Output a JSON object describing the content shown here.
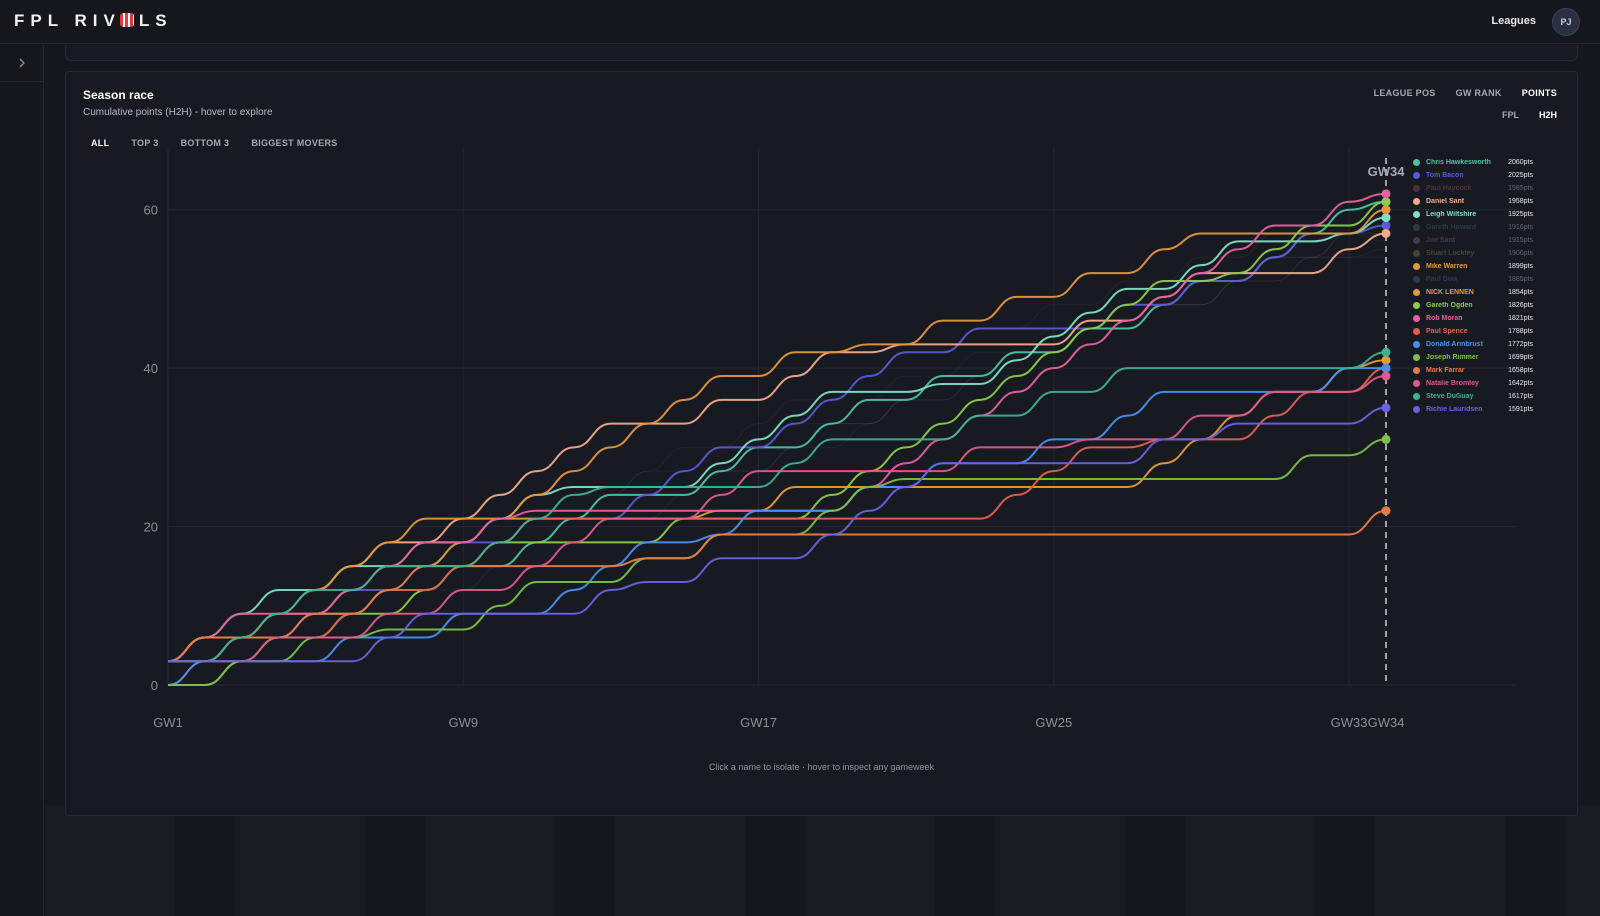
{
  "app": {
    "logo_text_left": "FPL RIV",
    "logo_text_right": "LS",
    "nav_leagues": "Leagues",
    "avatar_initials": "PJ"
  },
  "card": {
    "title": "Season race",
    "subtitle": "Cumulative points (H2H) - hover to explore",
    "filters": [
      "ALL",
      "TOP 3",
      "BOTTOM 3",
      "BIGGEST MOVERS"
    ],
    "active_filter": "ALL",
    "metric_tabs": [
      "LEAGUE POS",
      "GW RANK",
      "POINTS"
    ],
    "active_metric": "POINTS",
    "source_tabs": [
      "FPL",
      "H2H"
    ],
    "active_source": "H2H",
    "footnote": "Click a name to isolate · hover to inspect any gameweek"
  },
  "chart_data": {
    "type": "line",
    "x": [
      "GW1",
      "GW2",
      "GW3",
      "GW4",
      "GW5",
      "GW6",
      "GW7",
      "GW8",
      "GW9",
      "GW10",
      "GW11",
      "GW12",
      "GW13",
      "GW14",
      "GW15",
      "GW16",
      "GW17",
      "GW18",
      "GW19",
      "GW20",
      "GW21",
      "GW22",
      "GW23",
      "GW24",
      "GW25",
      "GW26",
      "GW27",
      "GW28",
      "GW29",
      "GW30",
      "GW31",
      "GW32",
      "GW33",
      "GW34"
    ],
    "x_tick_labels": [
      "GW1",
      "GW9",
      "GW17",
      "GW25",
      "GW33",
      "GW34"
    ],
    "y_tick_labels": [
      "0",
      "20",
      "40",
      "60"
    ],
    "ylim": [
      0,
      64
    ],
    "current_marker_label": "GW34",
    "grid": true,
    "legend_placement": "right",
    "series": [
      {
        "name": "Chris Hawkesworth",
        "points_label": "2060pts",
        "color": "#4fc2a0",
        "dim": false,
        "values": [
          3,
          3,
          6,
          6,
          9,
          9,
          12,
          12,
          15,
          15,
          18,
          21,
          24,
          24,
          24,
          27,
          30,
          30,
          33,
          36,
          36,
          39,
          39,
          42,
          42,
          45,
          45,
          48,
          51,
          51,
          54,
          57,
          60,
          61
        ]
      },
      {
        "name": "Tom Bacon",
        "points_label": "2025pts",
        "color": "#5b57d6",
        "dim": false,
        "values": [
          3,
          6,
          6,
          6,
          9,
          12,
          12,
          15,
          18,
          18,
          21,
          21,
          21,
          24,
          27,
          30,
          30,
          33,
          36,
          39,
          42,
          42,
          45,
          45,
          45,
          45,
          48,
          48,
          51,
          51,
          54,
          57,
          57,
          58
        ]
      },
      {
        "name": "Paul Haycock",
        "points_label": "1985pts",
        "color": "#b25a5a",
        "dim": true,
        "values": [
          0,
          3,
          3,
          6,
          6,
          9,
          12,
          15,
          18,
          21,
          21,
          24,
          24,
          27,
          30,
          30,
          33,
          36,
          36,
          39,
          42,
          42,
          45,
          45,
          48,
          48,
          51,
          51,
          54,
          54,
          57,
          57,
          60,
          59
        ]
      },
      {
        "name": "Daniel Sant",
        "points_label": "1958pts",
        "color": "#f3a98c",
        "dim": false,
        "values": [
          3,
          6,
          6,
          9,
          12,
          15,
          18,
          18,
          21,
          24,
          27,
          30,
          33,
          33,
          33,
          36,
          36,
          39,
          42,
          42,
          43,
          43,
          43,
          43,
          43,
          46,
          46,
          49,
          52,
          52,
          52,
          52,
          55,
          57
        ]
      },
      {
        "name": "Leigh Wiltshire",
        "points_label": "1925pts",
        "color": "#7fe0c4",
        "dim": false,
        "values": [
          3,
          6,
          9,
          12,
          12,
          15,
          15,
          18,
          18,
          21,
          24,
          25,
          25,
          25,
          25,
          28,
          31,
          34,
          37,
          37,
          37,
          38,
          38,
          41,
          44,
          47,
          50,
          50,
          53,
          56,
          56,
          56,
          57,
          59
        ]
      },
      {
        "name": "Gareth Howard",
        "points_label": "1916pts",
        "color": "#4f7a6e",
        "dim": true,
        "values": [
          3,
          3,
          6,
          9,
          9,
          12,
          15,
          15,
          18,
          18,
          21,
          21,
          24,
          27,
          27,
          30,
          30,
          33,
          33,
          36,
          39,
          39,
          42,
          42,
          45,
          45,
          48,
          48,
          51,
          51,
          54,
          54,
          57,
          56
        ]
      },
      {
        "name": "Joe Sant",
        "points_label": "1915pts",
        "color": "#7a7fb0",
        "dim": true,
        "values": [
          0,
          3,
          3,
          3,
          6,
          6,
          9,
          12,
          12,
          15,
          15,
          18,
          21,
          21,
          24,
          27,
          27,
          30,
          33,
          33,
          36,
          36,
          39,
          42,
          42,
          45,
          45,
          48,
          48,
          51,
          51,
          54,
          54,
          55
        ]
      },
      {
        "name": "Stuart Lockley",
        "points_label": "1906pts",
        "color": "#a88b5a",
        "dim": true,
        "values": [
          3,
          3,
          6,
          6,
          9,
          12,
          12,
          15,
          15,
          18,
          18,
          21,
          21,
          24,
          24,
          27,
          30,
          30,
          33,
          33,
          36,
          39,
          39,
          42,
          42,
          45,
          45,
          48,
          48,
          51,
          54,
          54,
          57,
          57
        ]
      },
      {
        "name": "Mike Warren",
        "points_label": "1899pts",
        "color": "#e5963e",
        "dim": false,
        "values": [
          3,
          6,
          6,
          9,
          12,
          15,
          18,
          21,
          21,
          21,
          24,
          27,
          30,
          33,
          36,
          39,
          39,
          42,
          42,
          43,
          43,
          46,
          46,
          49,
          49,
          52,
          52,
          55,
          57,
          57,
          57,
          57,
          57,
          60
        ]
      },
      {
        "name": "Paul Dow",
        "points_label": "1885pts",
        "color": "#5a6fa0",
        "dim": true,
        "values": [
          0,
          3,
          3,
          6,
          6,
          9,
          9,
          12,
          15,
          15,
          18,
          18,
          21,
          24,
          24,
          27,
          27,
          30,
          30,
          33,
          36,
          36,
          39,
          39,
          42,
          45,
          45,
          48,
          48,
          51,
          51,
          54,
          54,
          54
        ]
      },
      {
        "name": "NICK LENNEN",
        "points_label": "1854pts",
        "color": "#e59a3a",
        "dim": false,
        "values": [
          3,
          3,
          6,
          9,
          9,
          12,
          15,
          15,
          18,
          21,
          21,
          21,
          21,
          21,
          21,
          22,
          22,
          25,
          25,
          25,
          25,
          25,
          25,
          25,
          25,
          25,
          25,
          28,
          31,
          34,
          37,
          37,
          40,
          41
        ]
      },
      {
        "name": "Gareth Ogden",
        "points_label": "1826pts",
        "color": "#8bcc4a",
        "dim": false,
        "values": [
          0,
          0,
          3,
          6,
          6,
          9,
          9,
          12,
          15,
          18,
          18,
          18,
          18,
          18,
          21,
          21,
          21,
          21,
          24,
          27,
          30,
          33,
          36,
          39,
          42,
          45,
          48,
          51,
          51,
          52,
          55,
          58,
          58,
          61
        ]
      },
      {
        "name": "Rob Moran",
        "points_label": "1821pts",
        "color": "#e560a0",
        "dim": false,
        "values": [
          3,
          6,
          9,
          9,
          9,
          12,
          15,
          18,
          18,
          21,
          22,
          22,
          22,
          22,
          22,
          22,
          22,
          22,
          22,
          25,
          28,
          31,
          34,
          37,
          40,
          43,
          46,
          49,
          52,
          55,
          58,
          58,
          61,
          62
        ]
      },
      {
        "name": "Paul Spence",
        "points_label": "1788pts",
        "color": "#e06050",
        "dim": false,
        "values": [
          0,
          3,
          6,
          6,
          6,
          9,
          12,
          12,
          15,
          18,
          21,
          21,
          21,
          21,
          21,
          21,
          21,
          21,
          21,
          21,
          21,
          21,
          21,
          24,
          27,
          30,
          30,
          31,
          31,
          31,
          34,
          37,
          37,
          40
        ]
      },
      {
        "name": "Donald Armbrust",
        "points_label": "1772pts",
        "color": "#4a8ff0",
        "dim": false,
        "values": [
          0,
          3,
          3,
          3,
          3,
          6,
          6,
          6,
          9,
          9,
          9,
          12,
          15,
          18,
          18,
          19,
          22,
          22,
          22,
          25,
          25,
          28,
          28,
          28,
          31,
          31,
          34,
          37,
          37,
          37,
          37,
          37,
          40,
          40
        ]
      },
      {
        "name": "Joseph Rimmer",
        "points_label": "1699pts",
        "color": "#7bc04a",
        "dim": false,
        "values": [
          0,
          0,
          3,
          3,
          6,
          6,
          7,
          7,
          7,
          10,
          13,
          13,
          13,
          16,
          16,
          19,
          19,
          19,
          22,
          25,
          26,
          26,
          26,
          26,
          26,
          26,
          26,
          26,
          26,
          26,
          26,
          29,
          29,
          31
        ]
      },
      {
        "name": "Mark Farrar",
        "points_label": "1658pts",
        "color": "#e87a4a",
        "dim": false,
        "values": [
          3,
          6,
          6,
          6,
          9,
          9,
          12,
          15,
          15,
          15,
          15,
          15,
          15,
          16,
          16,
          19,
          19,
          19,
          19,
          19,
          19,
          19,
          19,
          19,
          19,
          19,
          19,
          19,
          19,
          19,
          19,
          19,
          19,
          22
        ]
      },
      {
        "name": "Natalie Bromley",
        "points_label": "1642pts",
        "color": "#e05a8a",
        "dim": false,
        "values": [
          3,
          3,
          3,
          6,
          6,
          6,
          9,
          9,
          12,
          12,
          15,
          18,
          21,
          21,
          21,
          24,
          27,
          27,
          27,
          27,
          27,
          27,
          30,
          30,
          30,
          31,
          31,
          31,
          34,
          34,
          37,
          37,
          37,
          39
        ]
      },
      {
        "name": "Steve DuGuay",
        "points_label": "1617pts",
        "color": "#3fb092",
        "dim": false,
        "values": [
          3,
          3,
          6,
          9,
          12,
          12,
          15,
          15,
          15,
          18,
          21,
          24,
          25,
          25,
          25,
          25,
          25,
          28,
          31,
          31,
          31,
          31,
          34,
          34,
          37,
          37,
          40,
          40,
          40,
          40,
          40,
          40,
          40,
          42
        ]
      },
      {
        "name": "Richie Lauridsen",
        "points_label": "1591pts",
        "color": "#6a62e0",
        "dim": false,
        "values": [
          3,
          3,
          3,
          3,
          3,
          3,
          6,
          9,
          9,
          9,
          9,
          9,
          12,
          13,
          13,
          16,
          16,
          16,
          19,
          22,
          25,
          28,
          28,
          28,
          28,
          28,
          28,
          31,
          31,
          33,
          33,
          33,
          33,
          35
        ]
      }
    ]
  }
}
